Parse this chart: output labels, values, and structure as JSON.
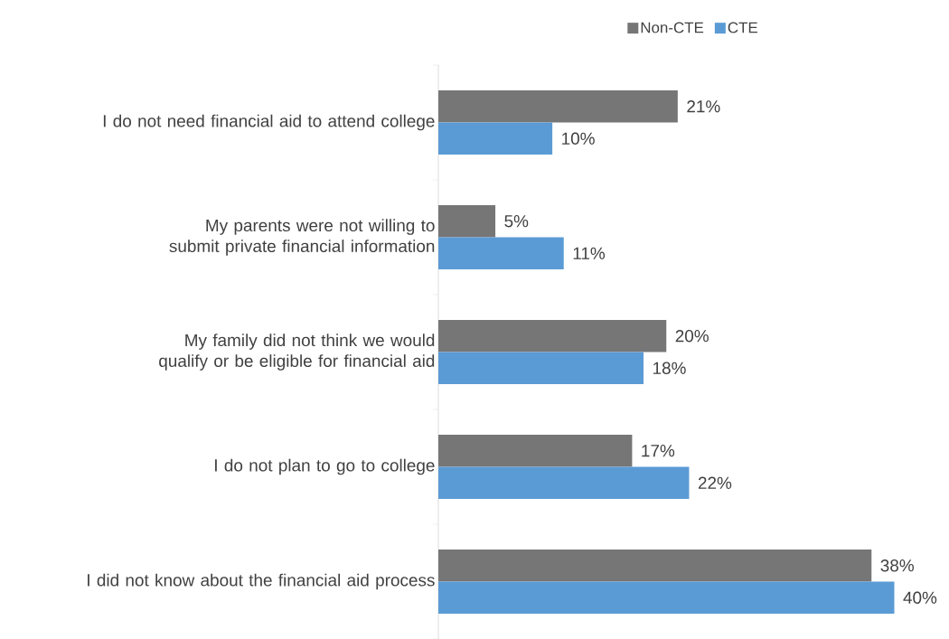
{
  "chart_data": {
    "type": "bar",
    "orientation": "horizontal",
    "categories": [
      "I do not need financial aid to attend college",
      "My parents were not willing to submit private financial information",
      "My family did not think we would qualify or be eligible for financial aid",
      "I do not plan to go to college",
      "I did not know about the financial aid process"
    ],
    "series": [
      {
        "name": "Non-CTE",
        "color": "#767676",
        "values": [
          21,
          5,
          20,
          17,
          38
        ],
        "value_labels": [
          "21%",
          "5%",
          "20%",
          "17%",
          "38%"
        ]
      },
      {
        "name": "CTE",
        "color": "#5b9bd5",
        "values": [
          10,
          11,
          18,
          22,
          40
        ],
        "value_labels": [
          "10%",
          "11%",
          "18%",
          "22%",
          "40%"
        ]
      }
    ],
    "tick_labels": "y",
    "legend": "top"
  }
}
